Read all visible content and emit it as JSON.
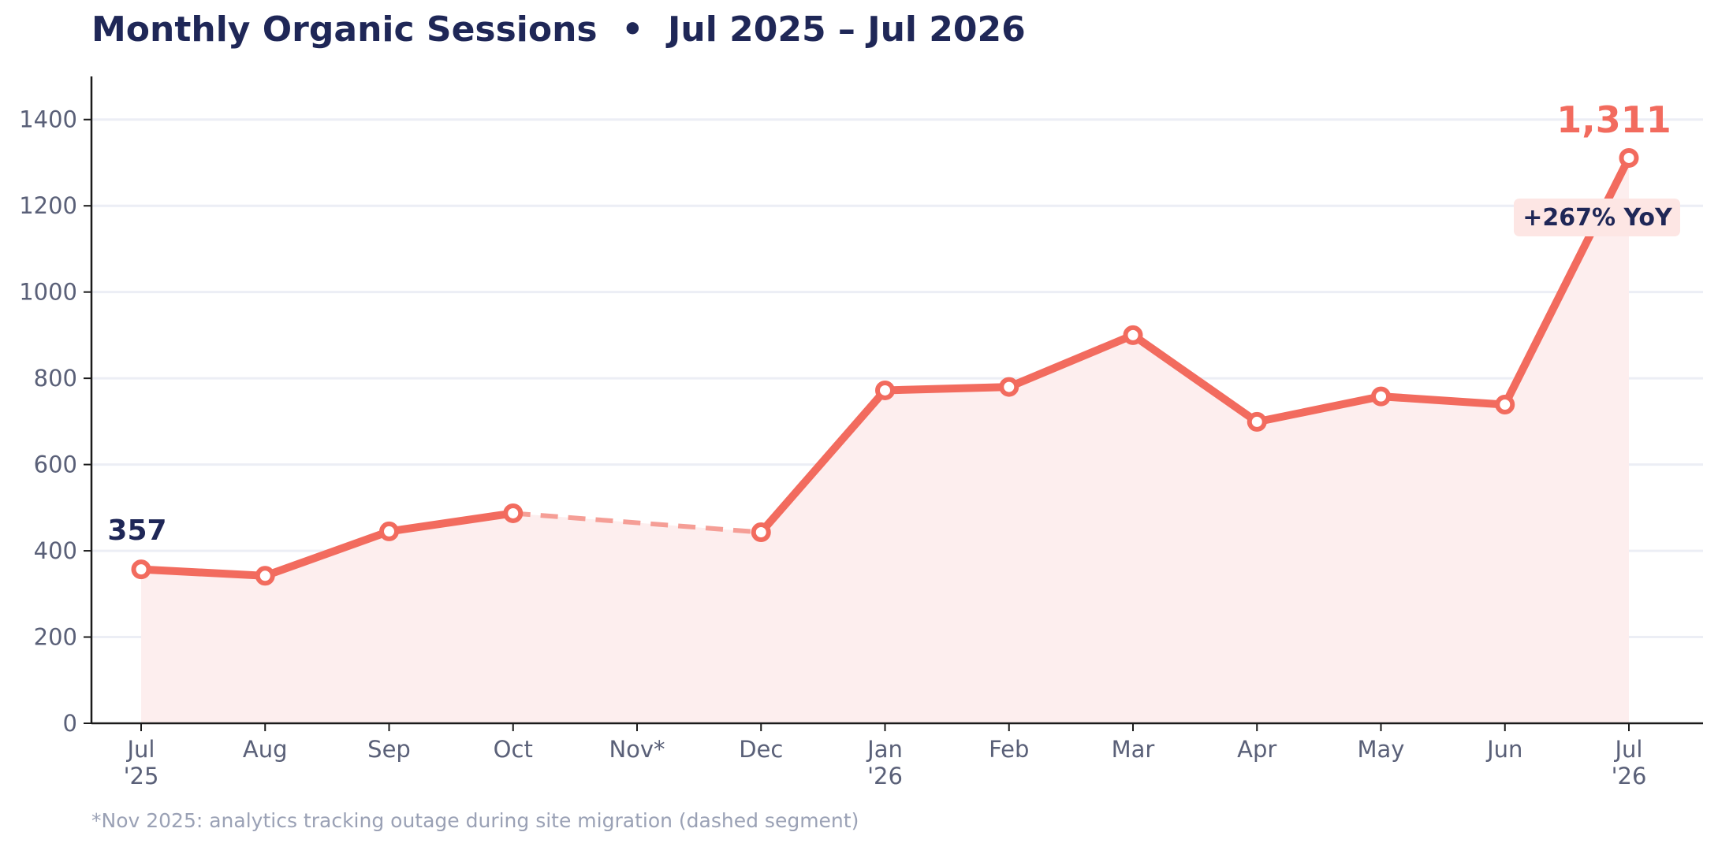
{
  "chart_data": {
    "type": "line",
    "title": "Monthly Organic Sessions  •  Jul 2025 – Jul 2026",
    "categories": [
      [
        "Jul",
        "'25"
      ],
      [
        "Aug"
      ],
      [
        "Sep"
      ],
      [
        "Oct"
      ],
      [
        "Nov*"
      ],
      [
        "Dec"
      ],
      [
        "Jan",
        "'26"
      ],
      [
        "Feb"
      ],
      [
        "Mar"
      ],
      [
        "Apr"
      ],
      [
        "May"
      ],
      [
        "Jun"
      ],
      [
        "Jul",
        "'26"
      ]
    ],
    "series": [
      {
        "values": [
          357,
          342,
          445,
          487,
          null,
          443,
          772,
          780,
          900,
          699,
          758,
          739,
          1311
        ]
      }
    ],
    "ylim": [
      0,
      1500
    ],
    "yticks": [
      0,
      200,
      400,
      600,
      800,
      1000,
      1200,
      1400
    ],
    "grid": "horizontal",
    "annotations": {
      "start_label": "357",
      "end_label": "1,311",
      "yoy_badge": "+267% YoY"
    },
    "footnote": "*Nov 2025: analytics tracking outage during site migration (dashed segment)"
  },
  "colors": {
    "line": "#f26b5e",
    "dashed": "#f59e96",
    "fill": "#fdeeee",
    "title": "#1f2757",
    "grid": "#eceef5",
    "axis": "#1a1a1a",
    "badge_bg": "#fde6e4"
  }
}
